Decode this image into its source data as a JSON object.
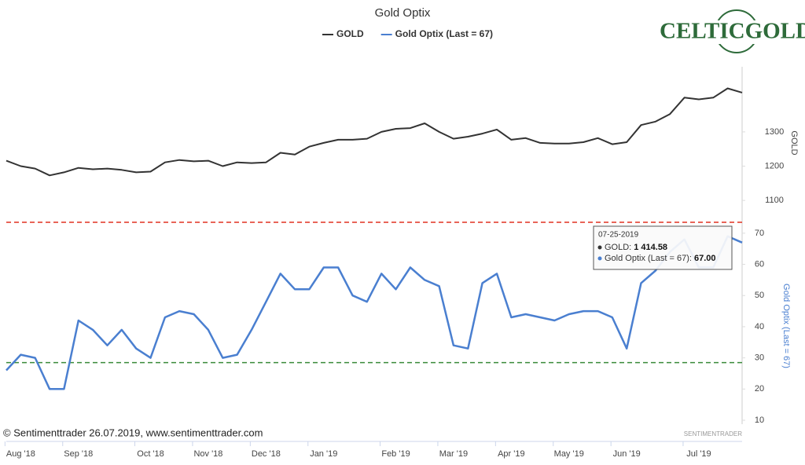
{
  "chart_data": {
    "type": "line",
    "title": "Gold Optix",
    "logo": "CELTICGOLD",
    "footer": "© Sentimenttrader 26.07.2019, www.sentimenttrader.com",
    "watermark": "SENTIMENTRADER",
    "categories": [
      null,
      "Aug '18",
      null,
      null,
      null,
      "Sep '18",
      null,
      null,
      null,
      null,
      "Oct '18",
      null,
      null,
      null,
      "Nov '18",
      null,
      null,
      null,
      "Dec '18",
      null,
      null,
      null,
      "Jan '19",
      null,
      null,
      null,
      null,
      "Feb '19",
      null,
      null,
      null,
      "Mar '19",
      null,
      null,
      null,
      "Apr '19",
      null,
      null,
      null,
      "May '19",
      null,
      null,
      null,
      "Jun '19",
      null,
      null,
      null,
      null,
      "Jul '19",
      null,
      null,
      null
    ],
    "series": [
      {
        "name": "GOLD",
        "color": "#333333",
        "axis": "y",
        "values": [
          1216,
          1200,
          1193,
          1173,
          1182,
          1195,
          1191,
          1193,
          1189,
          1182,
          1184,
          1211,
          1218,
          1214,
          1216,
          1200,
          1211,
          1209,
          1211,
          1239,
          1234,
          1257,
          1268,
          1277,
          1277,
          1280,
          1300,
          1309,
          1311,
          1325,
          1300,
          1280,
          1286,
          1295,
          1307,
          1277,
          1282,
          1268,
          1266,
          1266,
          1270,
          1282,
          1264,
          1270,
          1320,
          1330,
          1352,
          1400,
          1395,
          1400,
          1427,
          1414.58
        ]
      },
      {
        "name": "Gold Optix (Last = 67)",
        "color": "#4a7fd0",
        "axis": "y2",
        "values": [
          26,
          31,
          30,
          20,
          20,
          42,
          39,
          34,
          39,
          33,
          30,
          43,
          45,
          44,
          39,
          30,
          31,
          39,
          48,
          57,
          52,
          52,
          59,
          59,
          50,
          48,
          57,
          52,
          59,
          55,
          53,
          34,
          33,
          54,
          57,
          43,
          44,
          43,
          42,
          44,
          45,
          45,
          43,
          33,
          54,
          58,
          64,
          68,
          59,
          59,
          69,
          67
        ]
      }
    ],
    "ylim": [
      1050,
      1490
    ],
    "yticks": [
      1100,
      1200,
      1300
    ],
    "ylabel": "GOLD",
    "y2lim": [
      10,
      75
    ],
    "y2ticks": [
      10,
      20,
      30,
      40,
      50,
      60,
      70
    ],
    "y2label": "Gold Optix (Last = 67)",
    "hlines": [
      {
        "value": 73.5,
        "color": "#e03020",
        "axis": "y2"
      },
      {
        "value": 28.5,
        "color": "#3a8a3a",
        "axis": "y2"
      }
    ],
    "tooltip": {
      "date": "07-25-2019",
      "items": [
        {
          "label": "GOLD:",
          "value": "1 414.58",
          "color": "#333333"
        },
        {
          "label": "Gold Optix (Last = 67):",
          "value": "67.00",
          "color": "#4a7fd0"
        }
      ]
    }
  }
}
